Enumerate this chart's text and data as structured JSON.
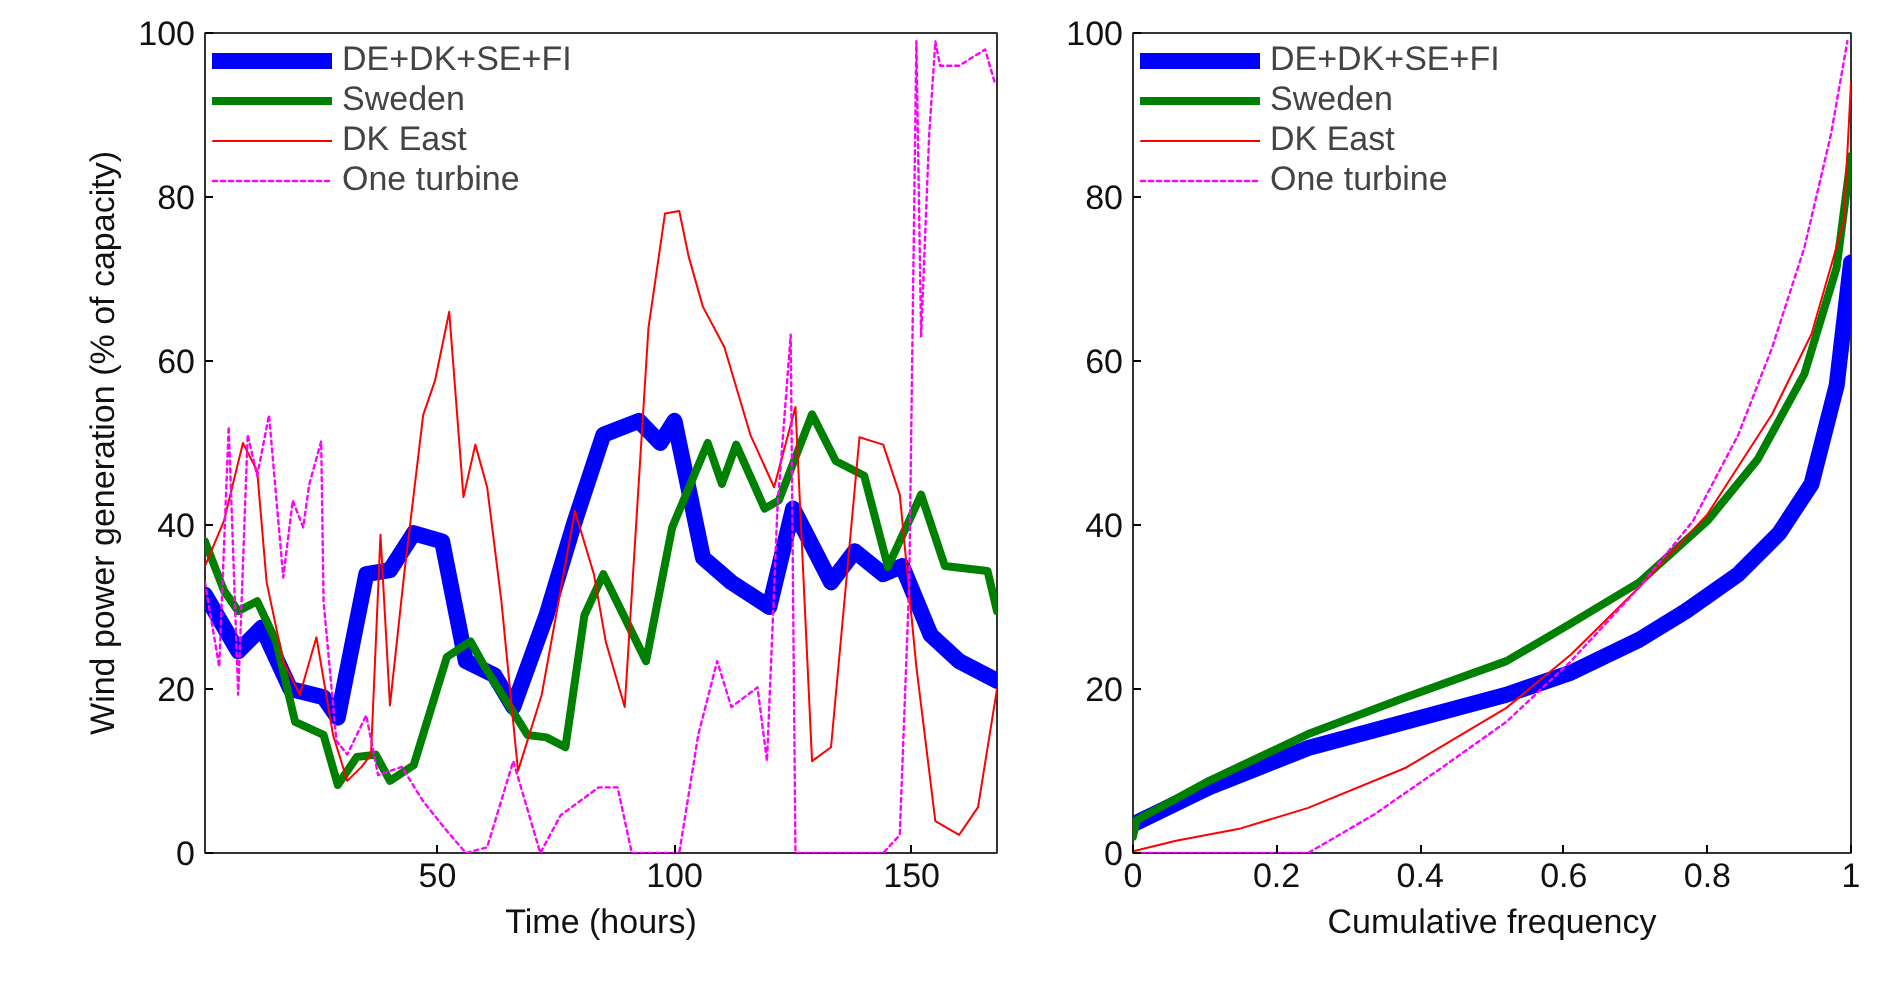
{
  "chart_data": [
    {
      "type": "line",
      "xlabel": "Time (hours)",
      "ylabel": "Wind power generation (% of capacity)",
      "xlim": [
        1,
        168
      ],
      "ylim": [
        0,
        100
      ],
      "xticks": [
        50,
        100,
        150
      ],
      "yticks": [
        0,
        20,
        40,
        60,
        80,
        100
      ],
      "grid": false,
      "legend": "top left",
      "series": [
        {
          "name": "DE+DK+SE+FI",
          "color": "#0000ff",
          "line_style": "solid",
          "x": [
            1,
            8,
            13,
            19,
            26,
            29,
            35,
            40,
            45,
            51,
            56,
            62,
            66,
            73,
            79,
            85,
            92.5,
            97,
            100,
            106,
            112,
            120,
            125,
            133,
            138,
            144,
            148,
            154,
            160,
            168
          ],
          "values": [
            31.5,
            24.6,
            27.5,
            20,
            19,
            16.5,
            34,
            34.5,
            39,
            38,
            23.4,
            21.7,
            17.8,
            29,
            40.5,
            51,
            52.7,
            50,
            52.7,
            36,
            33,
            30,
            42,
            33,
            36.8,
            34,
            35,
            26.6,
            23.4,
            21
          ]
        },
        {
          "name": "Sweden",
          "color": "#008000",
          "line_style": "solid",
          "x": [
            1,
            5,
            8,
            12,
            16,
            20,
            26,
            29,
            33,
            37,
            40,
            45,
            52,
            57,
            60,
            69,
            73,
            77,
            81,
            85,
            94,
            99.5,
            107,
            110,
            113,
            119,
            122,
            129,
            134,
            140,
            145,
            152,
            157,
            166,
            168
          ],
          "values": [
            38,
            32,
            29.5,
            30.7,
            25.8,
            16,
            14.4,
            8.3,
            11.7,
            12,
            8.8,
            10.7,
            23.9,
            25.8,
            22.7,
            14.4,
            14.1,
            12.9,
            29,
            34,
            23.4,
            39.7,
            50,
            45,
            49.8,
            42,
            43,
            53.5,
            47.8,
            46,
            34.9,
            43.7,
            35,
            34.4,
            29.5
          ]
        },
        {
          "name": "DK East",
          "color": "#ff0000",
          "line_style": "solid",
          "x": [
            1,
            5,
            9,
            12,
            14,
            17.5,
            21,
            24.5,
            28,
            31,
            34,
            36,
            38,
            40,
            43,
            47,
            49.5,
            52.5,
            55.5,
            58,
            60.5,
            63.5,
            67,
            72,
            79,
            83,
            85.5,
            89.5,
            94.5,
            98,
            101,
            103,
            106,
            110.5,
            116,
            121,
            125.5,
            129,
            133,
            139,
            144,
            147.5,
            151,
            155,
            160,
            164,
            168
          ],
          "values": [
            35,
            40.5,
            50,
            46.6,
            33,
            23.4,
            19.3,
            26.3,
            14.4,
            8.8,
            10.5,
            12,
            38.8,
            18,
            34,
            53.4,
            57.6,
            66,
            43.4,
            49.8,
            44.6,
            30.7,
            10,
            19.3,
            41.7,
            34,
            25.8,
            17.8,
            64,
            78,
            78.3,
            72.7,
            66.6,
            61.7,
            51,
            44.6,
            54.4,
            11.2,
            12.9,
            50.7,
            49.8,
            43.7,
            22.7,
            3.9,
            2.2,
            5.6,
            20
          ]
        },
        {
          "name": "One turbine",
          "color": "#ff00ff",
          "line_style": "dotted",
          "x": [
            1,
            4,
            6,
            8,
            10,
            12,
            14.5,
            17.5,
            19.5,
            21.7,
            23,
            25.5,
            26,
            28.7,
            31,
            35,
            37.5,
            42.5,
            47,
            52,
            56,
            60.5,
            66,
            71.7,
            76,
            84,
            88,
            91,
            101,
            105,
            109,
            112,
            117.5,
            119.5,
            121.7,
            124.5,
            125.5,
            132,
            144,
            147.5,
            149.5,
            151,
            152,
            153.7,
            155,
            156,
            160,
            165.5,
            167.5
          ],
          "values": [
            33,
            22.7,
            52,
            19.3,
            51,
            46,
            53.4,
            33.6,
            43,
            39.7,
            45,
            50.2,
            30.7,
            13.7,
            12,
            16.8,
            9.5,
            10.5,
            6.3,
            2.7,
            0,
            0.7,
            11.2,
            0,
            4.6,
            8,
            8,
            0,
            0,
            14.4,
            23.4,
            17.8,
            20.2,
            11.2,
            42,
            63.2,
            0,
            0,
            0,
            2.2,
            33,
            99,
            63,
            87.6,
            99,
            96,
            96,
            98,
            94
          ]
        }
      ]
    },
    {
      "type": "line",
      "xlabel": "Cumulative frequency",
      "xlim": [
        0,
        1
      ],
      "ylim": [
        0,
        100
      ],
      "xticks": [
        0,
        0.2,
        0.4,
        0.6,
        0.8,
        1
      ],
      "yticks": [
        0,
        20,
        40,
        60,
        80,
        100
      ],
      "grid": false,
      "legend": "top left",
      "series": [
        {
          "name": "DE+DK+SE+FI",
          "color": "#0000ff",
          "line_style": "solid",
          "x": [
            0,
            0.106,
            0.244,
            0.38,
            0.52,
            0.61,
            0.705,
            0.77,
            0.843,
            0.9,
            0.945,
            0.98,
            1
          ],
          "values": [
            3.5,
            8,
            12.8,
            16,
            19.3,
            22,
            26,
            29.5,
            34,
            39,
            45,
            57,
            72
          ]
        },
        {
          "name": "Sweden",
          "color": "#008000",
          "line_style": "solid",
          "x": [
            0,
            0.005,
            0.106,
            0.244,
            0.38,
            0.52,
            0.61,
            0.705,
            0.8,
            0.87,
            0.935,
            0.98,
            1
          ],
          "values": [
            2,
            4,
            8.8,
            14.5,
            19,
            23.4,
            28,
            33,
            40.5,
            48,
            58.4,
            71.4,
            85
          ]
        },
        {
          "name": "DK East",
          "color": "#ff0000",
          "line_style": "solid",
          "x": [
            0,
            0.06,
            0.15,
            0.244,
            0.38,
            0.52,
            0.61,
            0.705,
            0.8,
            0.89,
            0.945,
            0.99,
            1
          ],
          "values": [
            0.2,
            1.5,
            3,
            5.5,
            10.4,
            17.7,
            24.2,
            32.4,
            41.3,
            53.5,
            63.3,
            77,
            94
          ]
        },
        {
          "name": "One turbine",
          "color": "#ff00ff",
          "line_style": "dotted",
          "x": [
            0,
            0.244,
            0.336,
            0.43,
            0.52,
            0.61,
            0.705,
            0.78,
            0.843,
            0.89,
            0.935,
            0.972,
            0.995
          ],
          "values": [
            0,
            0,
            4.7,
            10.4,
            16,
            23.4,
            32.4,
            40.5,
            51,
            61.6,
            73.8,
            87.6,
            99
          ]
        }
      ]
    }
  ]
}
